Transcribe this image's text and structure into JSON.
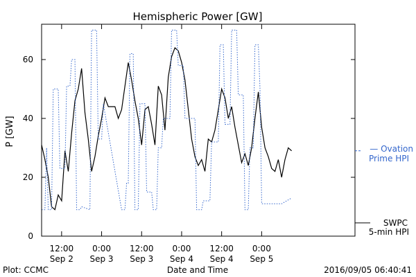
{
  "chart_data": {
    "type": "line",
    "title": "Hemispheric Power [GW]",
    "xlabel": "Date and Time",
    "ylabel": "P [GW]",
    "ylim": [
      0,
      72
    ],
    "yticks": [
      0,
      20,
      40,
      60
    ],
    "x_range_hours": [
      "2016-09-02 06:00",
      "2016-09-06 04:00"
    ],
    "x_ticks": [
      {
        "time": "2016-09-02 12:00",
        "label_top": "12:00",
        "label_bottom": "Sep 2"
      },
      {
        "time": "2016-09-03 00:00",
        "label_top": "0:00",
        "label_bottom": "Sep 3"
      },
      {
        "time": "2016-09-03 12:00",
        "label_top": "12:00",
        "label_bottom": "Sep 3"
      },
      {
        "time": "2016-09-04 00:00",
        "label_top": "0:00",
        "label_bottom": "Sep 4"
      },
      {
        "time": "2016-09-04 12:00",
        "label_top": "12:00",
        "label_bottom": "Sep 4"
      },
      {
        "time": "2016-09-05 00:00",
        "label_top": "0:00",
        "label_bottom": "Sep 5"
      }
    ],
    "series": [
      {
        "name": "SWPC 5-min HPI",
        "legend_lines": [
          "SWPC",
          "5-min HPI"
        ],
        "color": "#000000",
        "style": "solid",
        "points": [
          [
            "2016-09-02 06:00",
            31
          ],
          [
            "2016-09-02 07:00",
            26
          ],
          [
            "2016-09-02 08:00",
            20
          ],
          [
            "2016-09-02 09:00",
            10
          ],
          [
            "2016-09-02 10:00",
            9
          ],
          [
            "2016-09-02 11:00",
            14
          ],
          [
            "2016-09-02 12:00",
            12
          ],
          [
            "2016-09-02 13:00",
            29
          ],
          [
            "2016-09-02 14:00",
            22
          ],
          [
            "2016-09-02 15:00",
            35
          ],
          [
            "2016-09-02 16:00",
            46
          ],
          [
            "2016-09-02 17:00",
            50
          ],
          [
            "2016-09-02 18:00",
            57
          ],
          [
            "2016-09-02 19:00",
            42
          ],
          [
            "2016-09-02 20:00",
            33
          ],
          [
            "2016-09-02 21:00",
            22
          ],
          [
            "2016-09-02 22:00",
            27
          ],
          [
            "2016-09-02 23:00",
            34
          ],
          [
            "2016-09-03 00:00",
            40
          ],
          [
            "2016-09-03 01:00",
            47
          ],
          [
            "2016-09-03 02:00",
            44
          ],
          [
            "2016-09-03 03:00",
            44
          ],
          [
            "2016-09-03 04:00",
            44
          ],
          [
            "2016-09-03 05:00",
            40
          ],
          [
            "2016-09-03 06:00",
            43
          ],
          [
            "2016-09-03 07:00",
            51
          ],
          [
            "2016-09-03 08:00",
            59
          ],
          [
            "2016-09-03 09:00",
            53
          ],
          [
            "2016-09-03 10:00",
            46
          ],
          [
            "2016-09-03 11:00",
            40
          ],
          [
            "2016-09-03 12:00",
            31
          ],
          [
            "2016-09-03 13:00",
            43
          ],
          [
            "2016-09-03 14:00",
            44
          ],
          [
            "2016-09-03 15:00",
            38
          ],
          [
            "2016-09-03 16:00",
            31
          ],
          [
            "2016-09-03 17:00",
            51
          ],
          [
            "2016-09-03 18:00",
            48
          ],
          [
            "2016-09-03 19:00",
            36
          ],
          [
            "2016-09-03 20:00",
            54
          ],
          [
            "2016-09-03 21:00",
            61
          ],
          [
            "2016-09-03 22:00",
            64
          ],
          [
            "2016-09-03 23:00",
            63
          ],
          [
            "2016-09-04 00:00",
            59
          ],
          [
            "2016-09-04 01:00",
            53
          ],
          [
            "2016-09-04 02:00",
            43
          ],
          [
            "2016-09-04 03:00",
            33
          ],
          [
            "2016-09-04 04:00",
            27
          ],
          [
            "2016-09-04 05:00",
            24
          ],
          [
            "2016-09-04 06:00",
            26
          ],
          [
            "2016-09-04 07:00",
            22
          ],
          [
            "2016-09-04 08:00",
            33
          ],
          [
            "2016-09-04 09:00",
            32
          ],
          [
            "2016-09-04 10:00",
            36
          ],
          [
            "2016-09-04 11:00",
            43
          ],
          [
            "2016-09-04 12:00",
            50
          ],
          [
            "2016-09-04 13:00",
            47
          ],
          [
            "2016-09-04 14:00",
            40
          ],
          [
            "2016-09-04 15:00",
            44
          ],
          [
            "2016-09-04 16:00",
            37
          ],
          [
            "2016-09-04 17:00",
            31
          ],
          [
            "2016-09-04 18:00",
            25
          ],
          [
            "2016-09-04 19:00",
            28
          ],
          [
            "2016-09-04 20:00",
            24
          ],
          [
            "2016-09-04 21:00",
            30
          ],
          [
            "2016-09-04 22:00",
            40
          ],
          [
            "2016-09-04 23:00",
            49
          ],
          [
            "2016-09-05 00:00",
            37
          ],
          [
            "2016-09-05 01:00",
            30
          ],
          [
            "2016-09-05 02:00",
            27
          ],
          [
            "2016-09-05 03:00",
            23
          ],
          [
            "2016-09-05 04:00",
            22
          ],
          [
            "2016-09-05 05:00",
            26
          ],
          [
            "2016-09-05 06:00",
            20
          ],
          [
            "2016-09-05 07:00",
            26
          ],
          [
            "2016-09-05 08:00",
            30
          ],
          [
            "2016-09-05 09:00",
            29
          ]
        ]
      },
      {
        "name": "Ovation Prime HPI",
        "legend_lines": [
          "— Ovation",
          "Prime HPI"
        ],
        "color": "#3366cc",
        "style": "dotted",
        "points": [
          [
            "2016-09-02 06:00",
            9
          ],
          [
            "2016-09-02 07:00",
            9
          ],
          [
            "2016-09-02 07:30",
            30
          ],
          [
            "2016-09-02 08:00",
            9
          ],
          [
            "2016-09-02 09:00",
            9
          ],
          [
            "2016-09-02 09:30",
            50
          ],
          [
            "2016-09-02 11:00",
            50
          ],
          [
            "2016-09-02 11:30",
            23
          ],
          [
            "2016-09-02 13:00",
            23
          ],
          [
            "2016-09-02 13:30",
            51
          ],
          [
            "2016-09-02 14:30",
            51
          ],
          [
            "2016-09-02 15:00",
            60
          ],
          [
            "2016-09-02 16:00",
            60
          ],
          [
            "2016-09-02 16:30",
            9
          ],
          [
            "2016-09-02 17:30",
            9
          ],
          [
            "2016-09-02 18:00",
            10
          ],
          [
            "2016-09-02 20:30",
            9
          ],
          [
            "2016-09-02 21:00",
            70
          ],
          [
            "2016-09-02 22:30",
            70
          ],
          [
            "2016-09-02 23:00",
            33
          ],
          [
            "2016-09-03 00:00",
            33
          ],
          [
            "2016-09-03 00:30",
            45
          ],
          [
            "2016-09-03 06:00",
            9
          ],
          [
            "2016-09-03 07:00",
            9
          ],
          [
            "2016-09-03 07:30",
            18
          ],
          [
            "2016-09-03 08:00",
            18
          ],
          [
            "2016-09-03 08:30",
            62
          ],
          [
            "2016-09-03 09:30",
            62
          ],
          [
            "2016-09-03 10:00",
            9
          ],
          [
            "2016-09-03 11:00",
            9
          ],
          [
            "2016-09-03 11:30",
            45
          ],
          [
            "2016-09-03 13:00",
            45
          ],
          [
            "2016-09-03 13:30",
            15
          ],
          [
            "2016-09-03 15:00",
            15
          ],
          [
            "2016-09-03 15:30",
            9
          ],
          [
            "2016-09-03 16:30",
            9
          ],
          [
            "2016-09-03 17:00",
            30
          ],
          [
            "2016-09-03 18:00",
            30
          ],
          [
            "2016-09-03 18:30",
            40
          ],
          [
            "2016-09-03 20:30",
            40
          ],
          [
            "2016-09-03 21:00",
            70
          ],
          [
            "2016-09-03 22:30",
            70
          ],
          [
            "2016-09-03 23:00",
            58
          ],
          [
            "2016-09-04 00:30",
            58
          ],
          [
            "2016-09-04 01:00",
            40
          ],
          [
            "2016-09-04 04:00",
            40
          ],
          [
            "2016-09-04 04:30",
            9
          ],
          [
            "2016-09-04 06:00",
            9
          ],
          [
            "2016-09-04 06:30",
            12
          ],
          [
            "2016-09-04 08:30",
            12
          ],
          [
            "2016-09-04 09:00",
            32
          ],
          [
            "2016-09-04 11:00",
            32
          ],
          [
            "2016-09-04 11:30",
            65
          ],
          [
            "2016-09-04 12:30",
            65
          ],
          [
            "2016-09-04 13:00",
            38
          ],
          [
            "2016-09-04 14:30",
            38
          ],
          [
            "2016-09-04 15:00",
            70
          ],
          [
            "2016-09-04 16:30",
            70
          ],
          [
            "2016-09-04 17:00",
            48
          ],
          [
            "2016-09-04 18:30",
            48
          ],
          [
            "2016-09-04 19:00",
            9
          ],
          [
            "2016-09-04 20:00",
            9
          ],
          [
            "2016-09-04 20:30",
            30
          ],
          [
            "2016-09-04 21:30",
            30
          ],
          [
            "2016-09-04 22:00",
            65
          ],
          [
            "2016-09-04 23:00",
            65
          ],
          [
            "2016-09-04 23:30",
            50
          ],
          [
            "2016-09-05 00:00",
            11
          ],
          [
            "2016-09-05 06:00",
            11
          ],
          [
            "2016-09-05 09:00",
            13
          ]
        ]
      }
    ]
  },
  "footer": {
    "left": "Plot: CCMC",
    "right": "2016/09/05 06:40:41"
  }
}
